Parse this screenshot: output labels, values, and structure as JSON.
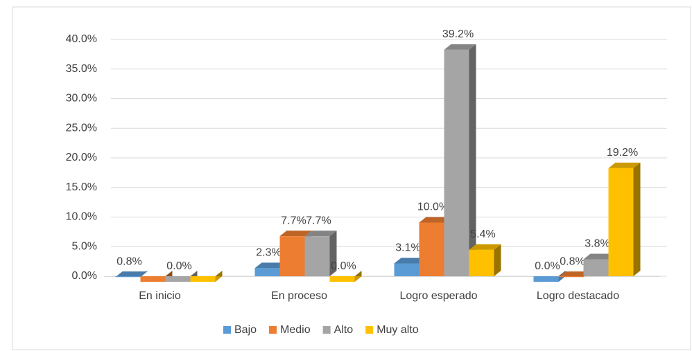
{
  "chart_data": {
    "type": "bar3d",
    "categories": [
      "En inicio",
      "En proceso",
      "Logro esperado",
      "Logro destacado"
    ],
    "series": [
      {
        "name": "Bajo",
        "color": "#5b9bd5",
        "values": [
          0.8,
          2.3,
          3.1,
          0.0
        ],
        "value_labels": [
          "0.8%",
          "2.3%",
          "3.1%",
          "0.0%"
        ]
      },
      {
        "name": "Medio",
        "color": "#ed7d31",
        "values": [
          0.0,
          7.7,
          10.0,
          0.8
        ],
        "value_labels": [
          null,
          "7.7%",
          "10.0%",
          "0.8%"
        ]
      },
      {
        "name": "Alto",
        "color": "#a5a5a5",
        "values": [
          0.0,
          7.7,
          39.2,
          3.8
        ],
        "value_labels": [
          "0.0%",
          "7.7%",
          "39.2%",
          "3.8%"
        ]
      },
      {
        "name": "Muy alto",
        "color": "#ffc000",
        "values": [
          0.0,
          0.0,
          5.4,
          19.2
        ],
        "value_labels": [
          null,
          "0.0%",
          "5.4%",
          "19.2%"
        ]
      }
    ],
    "ylim": [
      0,
      40
    ],
    "yticks": [
      {
        "value": 0,
        "label": "0.0%"
      },
      {
        "value": 5,
        "label": "5.0%"
      },
      {
        "value": 10,
        "label": "10.0%"
      },
      {
        "value": 15,
        "label": "15.0%"
      },
      {
        "value": 20,
        "label": "20.0%"
      },
      {
        "value": 25,
        "label": "25.0%"
      },
      {
        "value": 30,
        "label": "30.0%"
      },
      {
        "value": 35,
        "label": "35.0%"
      },
      {
        "value": 40,
        "label": "40.0%"
      }
    ],
    "grid": true,
    "legend": "bottom"
  }
}
